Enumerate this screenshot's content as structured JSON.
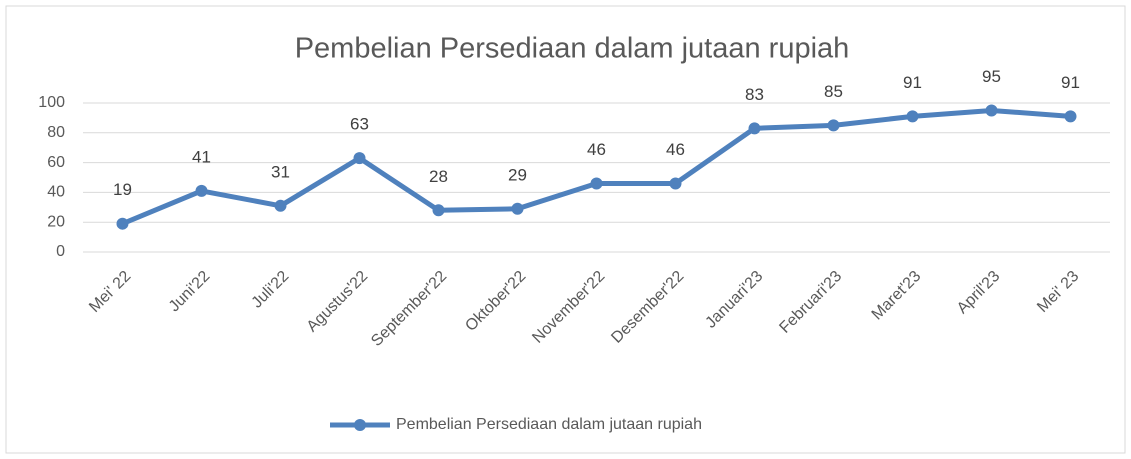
{
  "chart_data": {
    "type": "line",
    "title": "Pembelian Persediaan dalam jutaan rupiah",
    "categories": [
      "Mei' 22",
      "Juni'22",
      "Juli'22",
      "Agustus'22",
      "September'22",
      "Oktober'22",
      "November'22",
      "Desember'22",
      "Januari'23",
      "Februari'23",
      "Maret'23",
      "April'23",
      "Mei' 23"
    ],
    "series": [
      {
        "name": "Pembelian Persediaan dalam jutaan rupiah",
        "color": "#4f81bd",
        "values": [
          19,
          41,
          31,
          63,
          28,
          29,
          46,
          46,
          83,
          85,
          91,
          95,
          91
        ]
      }
    ],
    "ylim": [
      0,
      100
    ],
    "yticks": [
      0,
      20,
      40,
      60,
      80,
      100
    ],
    "grid": true,
    "legend": "bottom"
  }
}
